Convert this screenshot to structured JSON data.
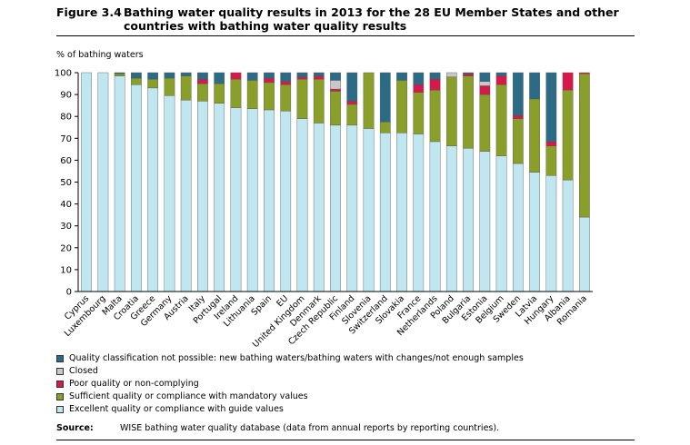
{
  "figure": {
    "number": "Figure 3.4",
    "title_line1": "Bathing water quality results in 2013 for the 28 EU Member States and other",
    "title_line2": "countries with bathing water quality results"
  },
  "source": {
    "label": "Source:",
    "text": "WISE bathing water quality database (data from annual reports by reporting countries)."
  },
  "chart_data": {
    "type": "bar",
    "stacked": true,
    "ylabel": "% of bathing waters",
    "ylim": [
      0,
      100
    ],
    "yticks": [
      0,
      10,
      20,
      30,
      40,
      50,
      60,
      70,
      80,
      90,
      100
    ],
    "categories": [
      "Cyprus",
      "Luxembourg",
      "Malta",
      "Croatia",
      "Greece",
      "Germany",
      "Austria",
      "Italy",
      "Portugal",
      "Ireland",
      "Lithuania",
      "Spain",
      "EU",
      "United Kingdom",
      "Denmark",
      "Czech Republic",
      "Finland",
      "Slovenia",
      "Switzerland",
      "Slovakia",
      "France",
      "Netherlands",
      "Poland",
      "Bulgaria",
      "Estonia",
      "Belgium",
      "Sweden",
      "Latvia",
      "Hungary",
      "Albania",
      "Romania"
    ],
    "series": [
      {
        "name": "Excellent quality or compliance with guide values",
        "color": "#c0e6f0",
        "values": [
          100,
          100,
          98.5,
          94.5,
          93,
          89.5,
          87.5,
          87,
          86,
          84,
          83.5,
          83,
          82.5,
          79,
          77,
          76,
          76,
          74.5,
          72.5,
          72.5,
          72,
          68.5,
          66.5,
          65.5,
          64,
          62,
          58.5,
          54.5,
          53,
          51,
          34
        ]
      },
      {
        "name": "Sufficient quality or compliance with mandatory values",
        "color": "#8a9e2a",
        "values": [
          0,
          0,
          1,
          3,
          4,
          8,
          11,
          8,
          9,
          13,
          13,
          12.5,
          12,
          18,
          20,
          15.5,
          9.5,
          25.5,
          5,
          24,
          19,
          23.5,
          31.5,
          33,
          26,
          32.5,
          20.5,
          33.5,
          13.5,
          41,
          65.5
        ]
      },
      {
        "name": "Poor quality or non-complying",
        "color": "#d6194b",
        "values": [
          0,
          0,
          0,
          0,
          0,
          0,
          0,
          2,
          0,
          3,
          0,
          2,
          1.5,
          1,
          1.5,
          1,
          1.5,
          0,
          0,
          0,
          3.5,
          5,
          0,
          1,
          4,
          4,
          1.5,
          0,
          2,
          8,
          0.5
        ]
      },
      {
        "name": "Closed",
        "color": "#c8c8c8",
        "values": [
          0,
          0,
          0,
          0,
          0,
          0,
          0,
          0,
          0,
          0,
          0,
          0,
          0,
          0,
          0,
          4,
          0,
          0,
          0,
          0,
          0,
          0,
          2,
          0,
          2,
          0,
          0,
          0,
          0,
          0,
          0
        ]
      },
      {
        "name": "Quality classification not possible: new bathing waters/bathing waters with changes/not enough samples",
        "color": "#2c6b86",
        "values": [
          0,
          0,
          0.5,
          2.5,
          3,
          2.5,
          1.5,
          3,
          5,
          0,
          3.5,
          2.5,
          4,
          2,
          1.5,
          3.5,
          13,
          0,
          22.5,
          3.5,
          5.5,
          3,
          0,
          0.5,
          4,
          1.5,
          19.5,
          12,
          31.5,
          0,
          0
        ]
      }
    ]
  },
  "legend_order": [
    4,
    3,
    2,
    1,
    0
  ]
}
